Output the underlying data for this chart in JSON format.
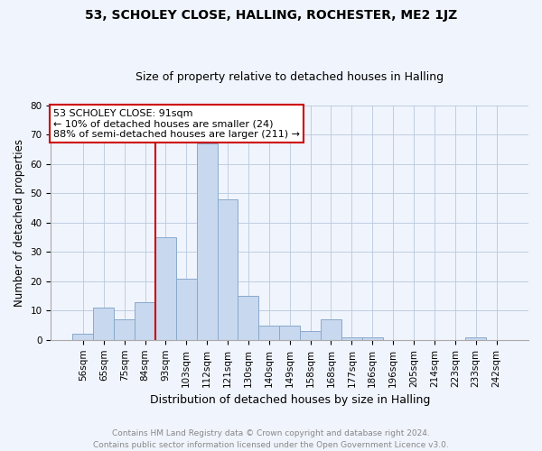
{
  "title_main": "53, SCHOLEY CLOSE, HALLING, ROCHESTER, ME2 1JZ",
  "title_sub": "Size of property relative to detached houses in Halling",
  "xlabel": "Distribution of detached houses by size in Halling",
  "ylabel": "Number of detached properties",
  "categories": [
    "56sqm",
    "65sqm",
    "75sqm",
    "84sqm",
    "93sqm",
    "103sqm",
    "112sqm",
    "121sqm",
    "130sqm",
    "140sqm",
    "149sqm",
    "158sqm",
    "168sqm",
    "177sqm",
    "186sqm",
    "196sqm",
    "205sqm",
    "214sqm",
    "223sqm",
    "233sqm",
    "242sqm"
  ],
  "values": [
    2,
    11,
    7,
    13,
    35,
    21,
    67,
    48,
    15,
    5,
    5,
    3,
    7,
    1,
    1,
    0,
    0,
    0,
    0,
    1,
    0
  ],
  "bar_color": "#c8d8ef",
  "bar_edge_color": "#88aacc",
  "vline_x": 3.5,
  "vline_color": "#cc0000",
  "annotation_line1": "53 SCHOLEY CLOSE: 91sqm",
  "annotation_line2": "← 10% of detached houses are smaller (24)",
  "annotation_line3": "88% of semi-detached houses are larger (211) →",
  "annotation_box_color": "#ffffff",
  "annotation_box_edge": "#cc0000",
  "ylim": [
    0,
    80
  ],
  "yticks": [
    0,
    10,
    20,
    30,
    40,
    50,
    60,
    70,
    80
  ],
  "footer": "Contains HM Land Registry data © Crown copyright and database right 2024.\nContains public sector information licensed under the Open Government Licence v3.0.",
  "footer_color": "#888888",
  "background_color": "#f0f4fc",
  "title_main_fontsize": 10,
  "title_sub_fontsize": 9,
  "xlabel_fontsize": 9,
  "ylabel_fontsize": 8.5,
  "tick_fontsize": 7.5,
  "annotation_fontsize": 8,
  "footer_fontsize": 6.5
}
